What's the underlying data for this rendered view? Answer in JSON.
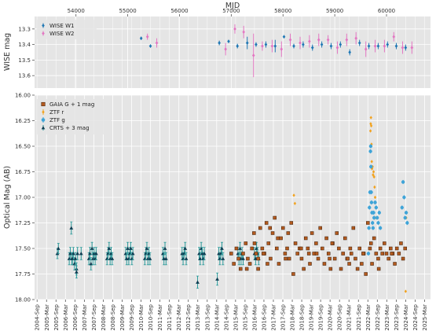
{
  "chart_data": [
    {
      "type": "scatter",
      "title": "",
      "top_xlabel": "MJD",
      "ylabel": "WISE mag",
      "y_inverted": true,
      "ylim": [
        13.68,
        13.22
      ],
      "xlim_mjd": [
        53200,
        60850
      ],
      "mjd_ticks": [
        "54000",
        "55000",
        "56000",
        "57000",
        "58000",
        "59000",
        "60000"
      ],
      "yticks": [
        "13.3",
        "13.4",
        "13.5",
        "13.6"
      ],
      "ytick_values": [
        13.3,
        13.4,
        13.5,
        13.6
      ],
      "grid": true,
      "legend_position": "top-left",
      "series": [
        {
          "name": "WISE W1",
          "color": "#1f77b4",
          "marker": "diamond",
          "x": [
            55320,
            55500,
            56830,
            57010,
            57180,
            57370,
            57540,
            57730,
            57910,
            58080,
            58270,
            58450,
            58630,
            58810,
            58990,
            59170,
            59350,
            59540,
            59720,
            59900,
            60080,
            60250,
            60430
          ],
          "y": [
            13.36,
            13.41,
            13.39,
            13.38,
            13.41,
            13.39,
            13.4,
            13.4,
            13.41,
            13.35,
            13.41,
            13.4,
            13.42,
            13.4,
            13.41,
            13.4,
            13.45,
            13.39,
            13.41,
            13.41,
            13.4,
            13.41,
            13.42
          ],
          "err": [
            0.01,
            0.01,
            0.015,
            0.01,
            0.015,
            0.04,
            0.015,
            0.02,
            0.04,
            0.01,
            0.015,
            0.02,
            0.02,
            0.02,
            0.02,
            0.02,
            0.02,
            0.02,
            0.02,
            0.02,
            0.02,
            0.02,
            0.02
          ]
        },
        {
          "name": "WISE W2",
          "color": "#e377c2",
          "marker": "diamond",
          "x": [
            55320,
            55500,
            56830,
            57010,
            57180,
            57370,
            57540,
            57730,
            57910,
            58080,
            58270,
            58450,
            58630,
            58810,
            58990,
            59170,
            59350,
            59540,
            59720,
            59900,
            60080,
            60250,
            60430
          ],
          "y": [
            13.35,
            13.39,
            13.43,
            13.3,
            13.32,
            13.47,
            13.41,
            13.41,
            13.43,
            13.37,
            13.39,
            13.38,
            13.37,
            13.37,
            13.42,
            13.37,
            13.36,
            13.43,
            13.41,
            13.41,
            13.35,
            13.42,
            13.42
          ],
          "err": [
            0.02,
            0.03,
            0.04,
            0.03,
            0.04,
            0.14,
            0.03,
            0.04,
            0.05,
            0.04,
            0.04,
            0.04,
            0.04,
            0.03,
            0.04,
            0.04,
            0.04,
            0.05,
            0.04,
            0.04,
            0.03,
            0.04,
            0.04
          ]
        }
      ]
    },
    {
      "type": "scatter",
      "title": "",
      "ylabel": "Optical Mag (AB)",
      "y_inverted": true,
      "ylim": [
        18.0,
        16.0
      ],
      "xlim_mjd": [
        53200,
        60850
      ],
      "date_ticks": [
        "2004-Sep",
        "2005-Mar",
        "2005-Sep",
        "2006-Mar",
        "2006-Sep",
        "2007-Mar",
        "2007-Sep",
        "2008-Mar",
        "2008-Sep",
        "2009-Mar",
        "2009-Sep",
        "2010-Mar",
        "2010-Sep",
        "2011-Mar",
        "2011-Sep",
        "2012-Mar",
        "2012-Sep",
        "2013-Mar",
        "2013-Sep",
        "2014-Mar",
        "2014-Sep",
        "2015-Mar",
        "2015-Sep",
        "2016-Mar",
        "2016-Sep",
        "2017-Mar",
        "2017-Sep",
        "2018-Mar",
        "2018-Sep",
        "2019-Mar",
        "2019-Sep",
        "2020-Mar",
        "2020-Sep",
        "2021-Mar",
        "2021-Sep",
        "2022-Mar",
        "2022-Sep",
        "2023-Mar",
        "2023-Sep",
        "2024-Mar",
        "2024-Sep",
        "2025-Mar"
      ],
      "yticks": [
        "16.00",
        "16.25",
        "16.50",
        "16.75",
        "17.00",
        "17.25",
        "17.50",
        "17.75",
        "18.00"
      ],
      "ytick_values": [
        16.0,
        16.25,
        16.5,
        16.75,
        17.0,
        17.25,
        17.5,
        17.75,
        18.0
      ],
      "grid": true,
      "legend_position": "top-left",
      "series": [
        {
          "name": "GAIA G + 1 mag",
          "color": "#b35a1f",
          "marker": "square",
          "x": [
            57000,
            57050,
            57100,
            57140,
            57180,
            57230,
            57280,
            57320,
            57360,
            57400,
            57440,
            57480,
            57520,
            57560,
            57600,
            57640,
            57680,
            57720,
            57760,
            57800,
            57840,
            57880,
            57920,
            57960,
            58000,
            58040,
            58080,
            58120,
            58160,
            58200,
            58240,
            58280,
            58320,
            58360,
            58400,
            58440,
            58480,
            58520,
            58560,
            58600,
            58640,
            58680,
            58720,
            58760,
            58800,
            58840,
            58880,
            58920,
            58960,
            59000,
            59040,
            59080,
            59120,
            59160,
            59200,
            59240,
            59280,
            59320,
            59360,
            59400,
            59440,
            59480,
            59520,
            59560,
            59600,
            59640,
            59680,
            59720,
            59760,
            59800,
            59840,
            59880,
            59920,
            59960,
            60000,
            60040,
            60080,
            60120,
            60160,
            60200,
            60240,
            60280,
            60320,
            60360,
            57520,
            57620,
            57700,
            57900,
            58100,
            58500,
            58900,
            59300,
            59700,
            60100,
            57300,
            57450,
            57750,
            58050,
            58350,
            58650,
            58950,
            59250,
            59550,
            59850
          ],
          "y": [
            17.55,
            17.65,
            17.5,
            17.6,
            17.7,
            17.55,
            17.45,
            17.6,
            17.65,
            17.5,
            17.35,
            17.55,
            17.6,
            17.3,
            17.5,
            17.55,
            17.25,
            17.45,
            17.6,
            17.35,
            17.2,
            17.5,
            17.65,
            17.4,
            17.3,
            17.55,
            17.5,
            17.6,
            17.25,
            17.75,
            17.45,
            17.55,
            17.5,
            17.6,
            17.7,
            17.4,
            17.5,
            17.65,
            17.35,
            17.55,
            17.45,
            17.6,
            17.3,
            17.5,
            17.65,
            17.4,
            17.55,
            17.7,
            17.45,
            17.6,
            17.35,
            17.5,
            17.7,
            17.55,
            17.4,
            17.6,
            17.65,
            17.55,
            17.3,
            17.6,
            17.7,
            17.5,
            17.65,
            17.55,
            17.75,
            17.25,
            17.5,
            17.65,
            17.4,
            17.55,
            17.6,
            17.5,
            17.55,
            17.45,
            17.55,
            17.6,
            17.5,
            17.55,
            17.65,
            17.5,
            17.55,
            17.45,
            17.6,
            17.5,
            17.7,
            17.55,
            17.65,
            17.4,
            17.35,
            17.55,
            17.6,
            17.5,
            17.45,
            17.55,
            17.7,
            17.45,
            17.3,
            17.6,
            17.5,
            17.55,
            17.45,
            17.6,
            17.55,
            17.7
          ]
        },
        {
          "name": "ZTF r",
          "color": "#f2a21d",
          "marker": "diamond",
          "x": [
            58210,
            58230,
            59690,
            59695,
            59700,
            59705,
            59710,
            59715,
            59720,
            59730,
            59740,
            59750,
            59760,
            59770,
            59780,
            59790,
            59800,
            60370,
            60380,
            60390,
            60395
          ],
          "y": [
            16.98,
            17.06,
            16.35,
            16.28,
            16.22,
            16.3,
            16.48,
            16.65,
            16.72,
            16.7,
            16.78,
            16.75,
            16.8,
            16.9,
            17.0,
            17.1,
            17.2,
            17.92,
            17.2,
            17.15,
            17.25
          ],
          "err": [
            0.01,
            0.01,
            0.01,
            0.01,
            0.01,
            0.01,
            0.01,
            0.01,
            0.01,
            0.01,
            0.01,
            0.01,
            0.01,
            0.01,
            0.01,
            0.01,
            0.01,
            0.01,
            0.01,
            0.01,
            0.01
          ]
        },
        {
          "name": "ZTF g",
          "color": "#3fa4d8",
          "marker": "circle",
          "x": [
            59650,
            59660,
            59670,
            59680,
            59690,
            59695,
            59700,
            59705,
            59710,
            59720,
            59730,
            59740,
            59750,
            59760,
            59780,
            59800,
            59820,
            59840,
            59860,
            59880,
            60300,
            60320,
            60340,
            60360,
            60380,
            60400
          ],
          "y": [
            17.55,
            17.3,
            17.1,
            16.95,
            16.55,
            16.5,
            16.7,
            16.95,
            17.05,
            17.15,
            17.25,
            17.3,
            17.15,
            17.2,
            17.05,
            17.1,
            17.2,
            17.25,
            17.15,
            17.3,
            17.1,
            16.85,
            17.0,
            17.2,
            17.15,
            17.25
          ],
          "err": [
            0.02,
            0.02,
            0.02,
            0.02,
            0.02,
            0.02,
            0.02,
            0.02,
            0.02,
            0.02,
            0.02,
            0.02,
            0.02,
            0.02,
            0.02,
            0.02,
            0.02,
            0.02,
            0.02,
            0.02,
            0.02,
            0.02,
            0.02,
            0.02,
            0.02,
            0.02
          ]
        },
        {
          "name": "CRTS + 3 mag",
          "color": "#0e3d52",
          "marker": "triangle",
          "err_color": "#2a9a9a",
          "x": [
            53640,
            53660,
            53870,
            53890,
            53910,
            53930,
            53950,
            53970,
            53990,
            54010,
            54030,
            54100,
            54250,
            54270,
            54290,
            54310,
            54330,
            54350,
            54370,
            54390,
            54600,
            54620,
            54640,
            54660,
            54680,
            54700,
            54960,
            54980,
            55000,
            55020,
            55040,
            55060,
            55080,
            55100,
            55330,
            55350,
            55370,
            55390,
            55410,
            55430,
            55680,
            55700,
            55720,
            55740,
            56050,
            56070,
            56090,
            56110,
            56130,
            56380,
            56400,
            56420,
            56440,
            56460,
            56480,
            56760,
            56780,
            56800,
            56820,
            56840,
            57130,
            57150,
            57170,
            57190,
            57210,
            57230,
            57450,
            57470,
            57490,
            57510,
            57530,
            56350,
            56730,
            54010,
            53920
          ],
          "y": [
            17.55,
            17.5,
            17.6,
            17.55,
            17.3,
            17.6,
            17.55,
            17.65,
            17.6,
            17.7,
            17.55,
            17.55,
            17.6,
            17.55,
            17.65,
            17.5,
            17.6,
            17.55,
            17.6,
            17.55,
            17.6,
            17.55,
            17.5,
            17.6,
            17.55,
            17.6,
            17.55,
            17.6,
            17.5,
            17.6,
            17.55,
            17.5,
            17.6,
            17.55,
            17.6,
            17.55,
            17.5,
            17.6,
            17.55,
            17.6,
            17.55,
            17.6,
            17.5,
            17.6,
            17.55,
            17.6,
            17.55,
            17.5,
            17.6,
            17.55,
            17.6,
            17.5,
            17.55,
            17.6,
            17.55,
            17.55,
            17.6,
            17.55,
            17.5,
            17.6,
            17.55,
            17.6,
            17.5,
            17.6,
            17.55,
            17.6,
            17.55,
            17.6,
            17.5,
            17.55,
            17.6,
            17.83,
            17.8,
            17.73,
            17.6
          ],
          "err": [
            0.05,
            0.05,
            0.06,
            0.06,
            0.06,
            0.06,
            0.06,
            0.06,
            0.06,
            0.06,
            0.06,
            0.06,
            0.06,
            0.06,
            0.06,
            0.06,
            0.06,
            0.06,
            0.06,
            0.06,
            0.06,
            0.06,
            0.06,
            0.06,
            0.06,
            0.06,
            0.06,
            0.06,
            0.06,
            0.06,
            0.06,
            0.06,
            0.06,
            0.06,
            0.06,
            0.06,
            0.06,
            0.06,
            0.06,
            0.06,
            0.06,
            0.06,
            0.06,
            0.06,
            0.06,
            0.06,
            0.06,
            0.06,
            0.06,
            0.06,
            0.06,
            0.06,
            0.06,
            0.06,
            0.06,
            0.06,
            0.06,
            0.06,
            0.06,
            0.06,
            0.06,
            0.06,
            0.06,
            0.06,
            0.06,
            0.06,
            0.06,
            0.06,
            0.06,
            0.06,
            0.06,
            0.06,
            0.06,
            0.06,
            0.06
          ]
        }
      ]
    }
  ]
}
